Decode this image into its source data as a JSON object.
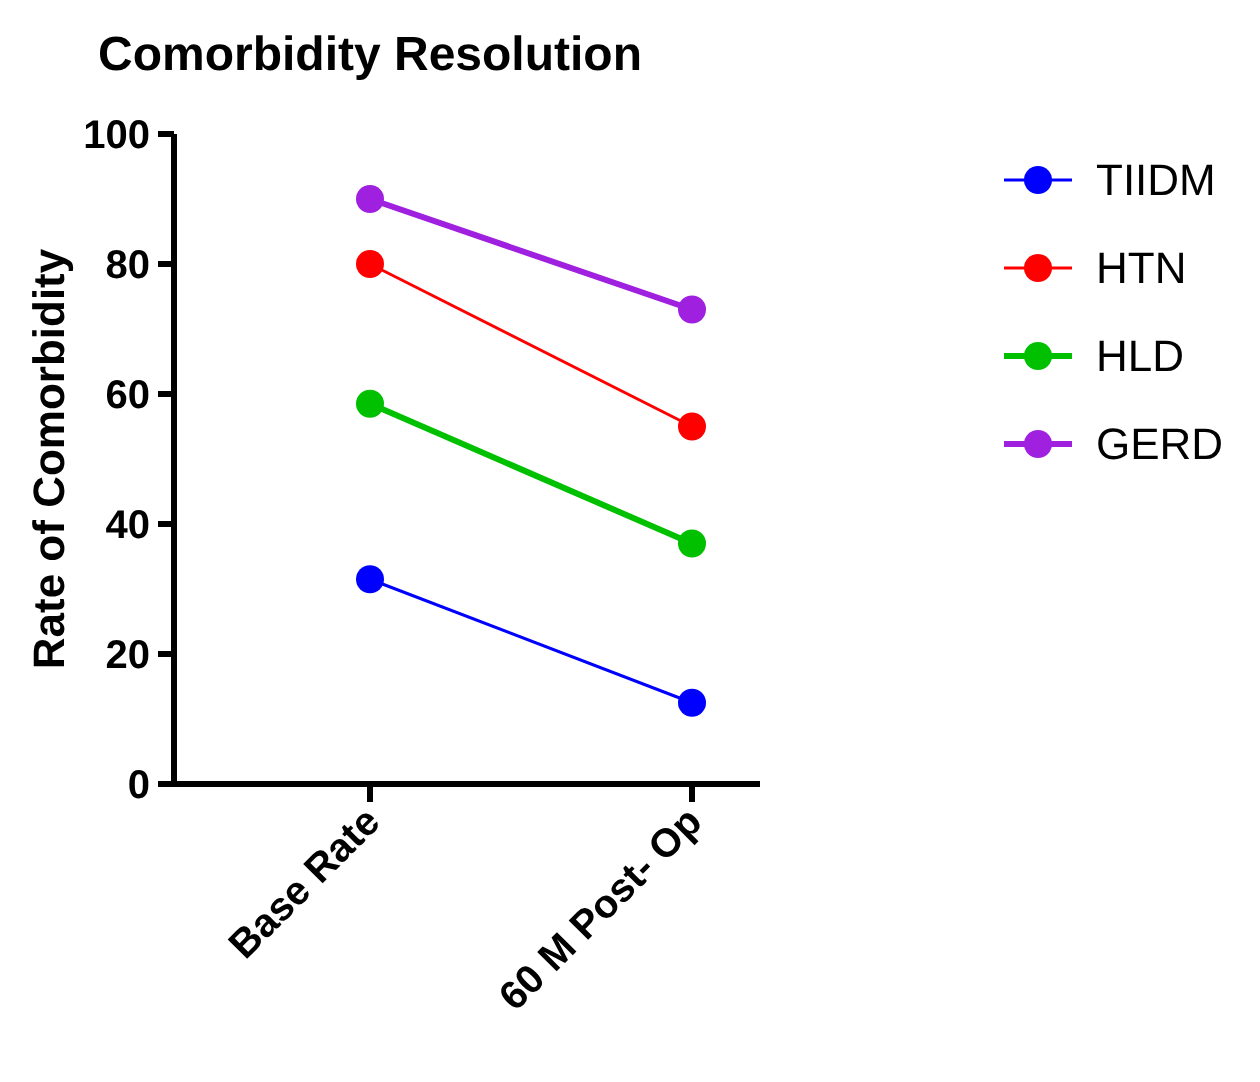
{
  "chart_data": {
    "type": "line",
    "title": "Comorbidity Resolution",
    "ylabel": "Rate of Comorbidity",
    "categories": [
      "Base Rate",
      "60 M Post- Op"
    ],
    "series": [
      {
        "name": "TIIDM",
        "color": "#0000ff",
        "values": [
          31.5,
          12.5
        ]
      },
      {
        "name": "HTN",
        "color": "#ff0000",
        "values": [
          80,
          55
        ]
      },
      {
        "name": "HLD",
        "color": "#00c000",
        "values": [
          58.5,
          37
        ]
      },
      {
        "name": "GERD",
        "color": "#a020e0",
        "values": [
          90,
          73
        ]
      }
    ],
    "ylim": [
      0,
      100
    ],
    "yticks": [
      0,
      20,
      40,
      60,
      80,
      100
    ],
    "grid": false,
    "legend": "right",
    "marker": "circle",
    "line_style": "solid"
  }
}
